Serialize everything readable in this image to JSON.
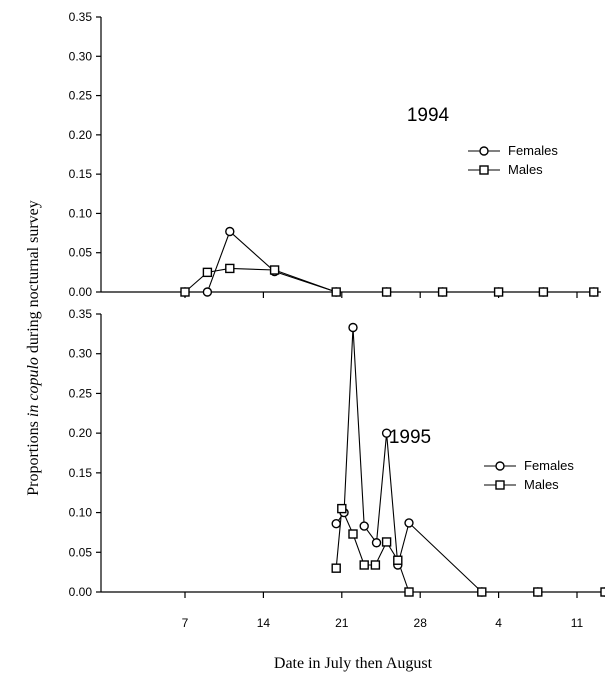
{
  "chart_data": {
    "type": "line",
    "xlabel": "Date in July then August",
    "ylabel": {
      "prefix": "Proportions ",
      "italic": "in copulo",
      "suffix": " during nocturnal survey"
    },
    "x_ticks": [
      {
        "label": "7",
        "day": 7
      },
      {
        "label": "14",
        "day": 14
      },
      {
        "label": "21",
        "day": 21
      },
      {
        "label": "28",
        "day": 28
      },
      {
        "label": "4",
        "day": 35
      },
      {
        "label": "11",
        "day": 42
      }
    ],
    "xlim": [
      -1,
      46
    ],
    "ylim": [
      0,
      0.35
    ],
    "y_ticks": [
      "0.00",
      "0.05",
      "0.10",
      "0.15",
      "0.20",
      "0.25",
      "0.30",
      "0.35"
    ],
    "panels": [
      {
        "year": "1994",
        "series": [
          {
            "name": "Females",
            "marker": "circle",
            "points": [
              [
                7,
                0.0
              ],
              [
                9,
                0.0
              ],
              [
                11,
                0.077
              ],
              [
                15,
                0.026
              ],
              [
                20.5,
                0.0
              ],
              [
                25,
                0.0
              ],
              [
                30,
                0.0
              ],
              [
                35,
                0.0
              ],
              [
                39,
                0.0
              ],
              [
                43.5,
                0.0
              ]
            ]
          },
          {
            "name": "Males",
            "marker": "square",
            "points": [
              [
                7,
                0.0
              ],
              [
                9,
                0.025
              ],
              [
                11,
                0.03
              ],
              [
                15,
                0.028
              ],
              [
                20.5,
                0.0
              ],
              [
                25,
                0.0
              ],
              [
                30,
                0.0
              ],
              [
                35,
                0.0
              ],
              [
                39,
                0.0
              ],
              [
                43.5,
                0.0
              ]
            ]
          }
        ]
      },
      {
        "year": "1995",
        "series": [
          {
            "name": "Females",
            "marker": "circle",
            "points": [
              [
                20.5,
                0.086
              ],
              [
                21.2,
                0.1
              ],
              [
                22,
                0.333
              ],
              [
                23,
                0.083
              ],
              [
                24.1,
                0.062
              ],
              [
                25,
                0.2
              ],
              [
                26,
                0.034
              ],
              [
                27,
                0.087
              ],
              [
                33.5,
                0.0
              ],
              [
                38.5,
                0.0
              ],
              [
                44.5,
                0.0
              ]
            ]
          },
          {
            "name": "Males",
            "marker": "square",
            "points": [
              [
                20.5,
                0.03
              ],
              [
                21,
                0.105
              ],
              [
                22,
                0.073
              ],
              [
                23,
                0.034
              ],
              [
                24,
                0.034
              ],
              [
                25,
                0.063
              ],
              [
                26,
                0.04
              ],
              [
                27,
                0.0
              ],
              [
                33.5,
                0.0
              ],
              [
                38.5,
                0.0
              ],
              [
                44.5,
                0.0
              ]
            ]
          }
        ]
      }
    ]
  }
}
